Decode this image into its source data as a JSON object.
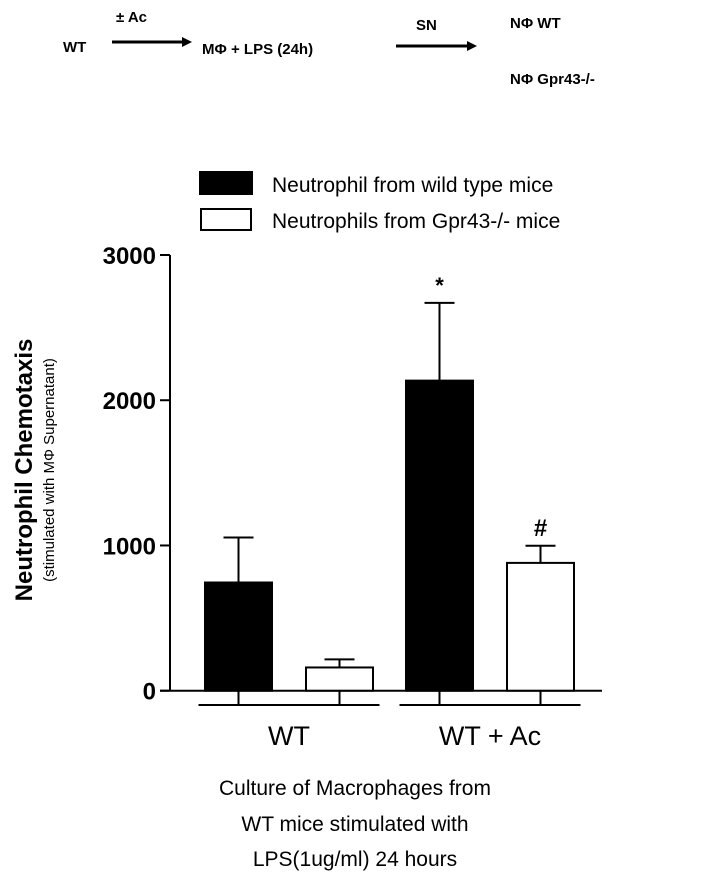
{
  "schematic": {
    "start": "WT",
    "arrow1_label": "± Ac",
    "middle": "MΦ + LPS (24h)",
    "arrow2_label": "SN",
    "target1": "NΦ  WT",
    "target2": "NΦ  Gpr43-/-"
  },
  "chart_data": {
    "type": "bar",
    "title": "",
    "ylabel": "Neutrophil Chemotaxis",
    "ylabel_sub": "(stimulated with MΦ Supernatant)",
    "xlabel_lines": [
      "Culture of Macrophages from",
      "WT mice stimulated with",
      "LPS(1ug/ml)  24 hours"
    ],
    "ylim": [
      0,
      3000
    ],
    "yticks": [
      "0",
      "1000",
      "2000",
      "3000"
    ],
    "categories": [
      "WT",
      "WT + Ac"
    ],
    "legend_position": "top",
    "series": [
      {
        "name": "Neutrophil from wild type mice",
        "color": "#000000",
        "values": [
          745,
          2135
        ],
        "errors": [
          310,
          535
        ],
        "annotations": [
          "",
          "*"
        ]
      },
      {
        "name": "Neutrophils from Gpr43-/- mice",
        "color": "#ffffff",
        "values": [
          160,
          880
        ],
        "errors": [
          56,
          118
        ],
        "annotations": [
          "",
          "#"
        ]
      }
    ]
  }
}
